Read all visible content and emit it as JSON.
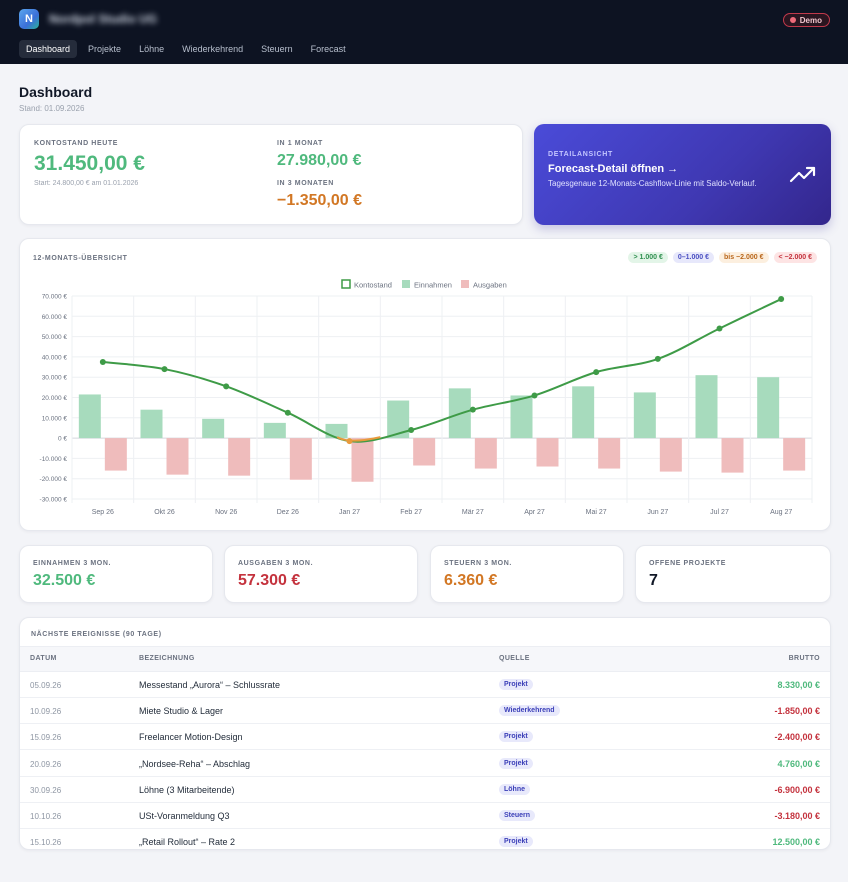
{
  "app": {
    "logo_letter": "N",
    "name": "Nordpol Studio UG",
    "badge": "Demo"
  },
  "nav": [
    {
      "label": "Dashboard",
      "active": true
    },
    {
      "label": "Projekte"
    },
    {
      "label": "Löhne"
    },
    {
      "label": "Wiederkehrend"
    },
    {
      "label": "Steuern"
    },
    {
      "label": "Forecast"
    }
  ],
  "page": {
    "title": "Dashboard",
    "subtitle": "Stand: 01.09.2026"
  },
  "balance": {
    "today_label": "KONTOSTAND HEUTE",
    "today_value": "31.450,00 €",
    "start_text": "Start: 24.800,00 € am 01.01.2026",
    "m1_label": "IN 1 MONAT",
    "m1_value": "27.980,00 €",
    "m3_label": "IN 3 MONATEN",
    "m3_value": "−1.350,00 €"
  },
  "forecast_card": {
    "label": "DETAILANSICHT",
    "title": "Forecast-Detail öffnen →",
    "desc": "Tagesgenaue 12-Monats-Cashflow-Linie mit Saldo-Verlauf.",
    "icon": "trending-up-icon"
  },
  "chart": {
    "title": "12-MONATS-ÜBERSICHT",
    "pills": [
      {
        "label": "> 1.000 €",
        "color": "#2f8f4f",
        "bg": "#e3f5e8"
      },
      {
        "label": "0–1.000 €",
        "color": "#4a4fc1",
        "bg": "#e7e8fb"
      },
      {
        "label": "bis −2.000 €",
        "color": "#b9671c",
        "bg": "#fcefdf"
      },
      {
        "label": "< −2.000 €",
        "color": "#c4323d",
        "bg": "#fde4e4"
      }
    ]
  },
  "chart_data": {
    "type": "bar",
    "categories": [
      "Sep 26",
      "Okt 26",
      "Nov 26",
      "Dez 26",
      "Jan 27",
      "Feb 27",
      "Mär 27",
      "Apr 27",
      "Mai 27",
      "Jun 27",
      "Jul 27",
      "Aug 27"
    ],
    "series": [
      {
        "name": "Kontostand",
        "type": "line",
        "values": [
          37500,
          34000,
          25500,
          12500,
          -1500,
          4000,
          14000,
          21000,
          32500,
          39000,
          54000,
          68500
        ]
      },
      {
        "name": "Einnahmen",
        "type": "bar",
        "values": [
          21500,
          14000,
          9500,
          7500,
          7000,
          18500,
          24500,
          21000,
          25500,
          22500,
          31000,
          30000
        ]
      },
      {
        "name": "Ausgaben",
        "type": "bar",
        "values": [
          -16000,
          -18000,
          -18500,
          -20500,
          -21500,
          -13500,
          -15000,
          -14000,
          -15000,
          -16500,
          -17000,
          -16000
        ]
      }
    ],
    "yticks": [
      "70.000 €",
      "60.000 €",
      "50.000 €",
      "40.000 €",
      "30.000 €",
      "20.000 €",
      "10.000 €",
      "0 €",
      "-10.000 €",
      "-20.000 €",
      "-30.000 €"
    ],
    "ylim": [
      -30000,
      70000
    ],
    "legend": "top",
    "grid": true,
    "colors": {
      "line": "#3e9b47",
      "line_negative": "#e89a3c",
      "income": "#a7dbbd",
      "expense": "#efbcbc"
    }
  },
  "kpis": [
    {
      "label": "EINNAHMEN 3 MON.",
      "value": "32.500 €",
      "color": "#4fb97d"
    },
    {
      "label": "AUSGABEN 3 MON.",
      "value": "57.300 €",
      "color": "#c4323d"
    },
    {
      "label": "STEUERN 3 MON.",
      "value": "6.360 €",
      "color": "#d27724"
    },
    {
      "label": "OFFENE PROJEKTE",
      "value": "7",
      "color": "#111827"
    }
  ],
  "events": {
    "title": "NÄCHSTE EREIGNISSE (90 TAGE)",
    "columns": [
      "DATUM",
      "BEZEICHNUNG",
      "QUELLE",
      "BRUTTO"
    ],
    "rows": [
      {
        "date": "05.09.26",
        "name": "Messestand „Aurora“ – Schlussrate",
        "source": "Projekt",
        "amount": "8.330,00 €",
        "color": "#4fb97d"
      },
      {
        "date": "10.09.26",
        "name": "Miete Studio & Lager",
        "source": "Wiederkehrend",
        "amount": "-1.850,00 €",
        "color": "#c4323d"
      },
      {
        "date": "15.09.26",
        "name": "Freelancer Motion-Design",
        "source": "Projekt",
        "amount": "-2.400,00 €",
        "color": "#c4323d"
      },
      {
        "date": "20.09.26",
        "name": "„Nordsee-Reha“ – Abschlag",
        "source": "Projekt",
        "amount": "4.760,00 €",
        "color": "#4fb97d"
      },
      {
        "date": "30.09.26",
        "name": "Löhne (3 Mitarbeitende)",
        "source": "Löhne",
        "amount": "-6.900,00 €",
        "color": "#c4323d"
      },
      {
        "date": "10.10.26",
        "name": "USt-Voranmeldung Q3",
        "source": "Steuern",
        "amount": "-3.180,00 €",
        "color": "#c4323d"
      },
      {
        "date": "15.10.26",
        "name": "„Retail Rollout“ – Rate 2",
        "source": "Projekt",
        "amount": "12.500,00 €",
        "color": "#4fb97d"
      }
    ]
  }
}
